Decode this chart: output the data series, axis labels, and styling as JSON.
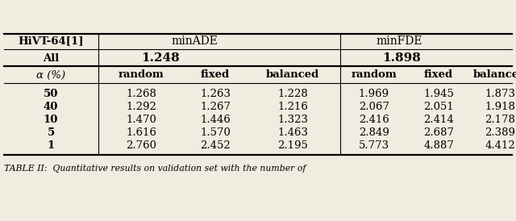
{
  "title": "HiVT-64[1]",
  "col_groups": [
    "minADE",
    "minFDE"
  ],
  "all_row_label": "All",
  "all_values": [
    "1.248",
    "1.898"
  ],
  "alpha_label": "α (%)",
  "sub_cols": [
    "random",
    "fixed",
    "balanced"
  ],
  "alpha_rows": [
    "50",
    "40",
    "10",
    "5",
    "1"
  ],
  "minADE_data": [
    [
      "1.268",
      "1.263",
      "1.228"
    ],
    [
      "1.292",
      "1.267",
      "1.216"
    ],
    [
      "1.470",
      "1.446",
      "1.323"
    ],
    [
      "1.616",
      "1.570",
      "1.463"
    ],
    [
      "2.760",
      "2.452",
      "2.195"
    ]
  ],
  "minFDE_data": [
    [
      "1.969",
      "1.945",
      "1.873"
    ],
    [
      "2.067",
      "2.051",
      "1.918"
    ],
    [
      "2.416",
      "2.414",
      "2.178"
    ],
    [
      "2.849",
      "2.687",
      "2.389"
    ],
    [
      "5.773",
      "4.887",
      "4.412"
    ]
  ],
  "caption": "TABLE II:  Quantitative results on validation set with the number of",
  "bg_color": "#f0ece0",
  "font_size": 9.5
}
